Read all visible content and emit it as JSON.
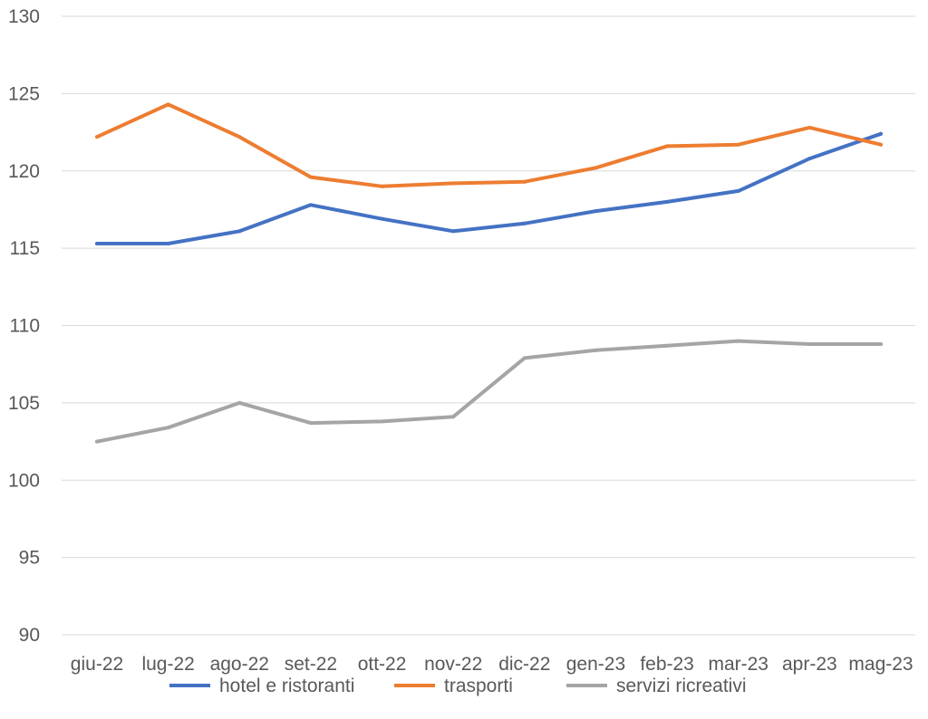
{
  "chart_data": {
    "type": "line",
    "title": "",
    "xlabel": "",
    "ylabel": "",
    "categories": [
      "giu-22",
      "lug-22",
      "ago-22",
      "set-22",
      "ott-22",
      "nov-22",
      "dic-22",
      "gen-23",
      "feb-23",
      "mar-23",
      "apr-23",
      "mag-23"
    ],
    "ylim": [
      90,
      130
    ],
    "yticks": [
      90,
      95,
      100,
      105,
      110,
      115,
      120,
      125,
      130
    ],
    "grid": "horizontal",
    "legend_position": "bottom",
    "series": [
      {
        "name": "hotel e ristoranti",
        "color": "#4472C4",
        "values": [
          115.3,
          115.3,
          116.1,
          117.8,
          116.9,
          116.1,
          116.6,
          117.4,
          118.0,
          118.7,
          120.8,
          122.4
        ]
      },
      {
        "name": "trasporti",
        "color": "#ED7D31",
        "values": [
          122.2,
          124.3,
          122.2,
          119.6,
          119.0,
          119.2,
          119.3,
          120.2,
          121.6,
          121.7,
          122.8,
          121.7
        ]
      },
      {
        "name": "servizi ricreativi",
        "color": "#A5A5A5",
        "values": [
          102.5,
          103.4,
          105.0,
          103.7,
          103.8,
          104.1,
          107.9,
          108.4,
          108.7,
          109.0,
          108.8,
          108.8
        ]
      }
    ]
  }
}
